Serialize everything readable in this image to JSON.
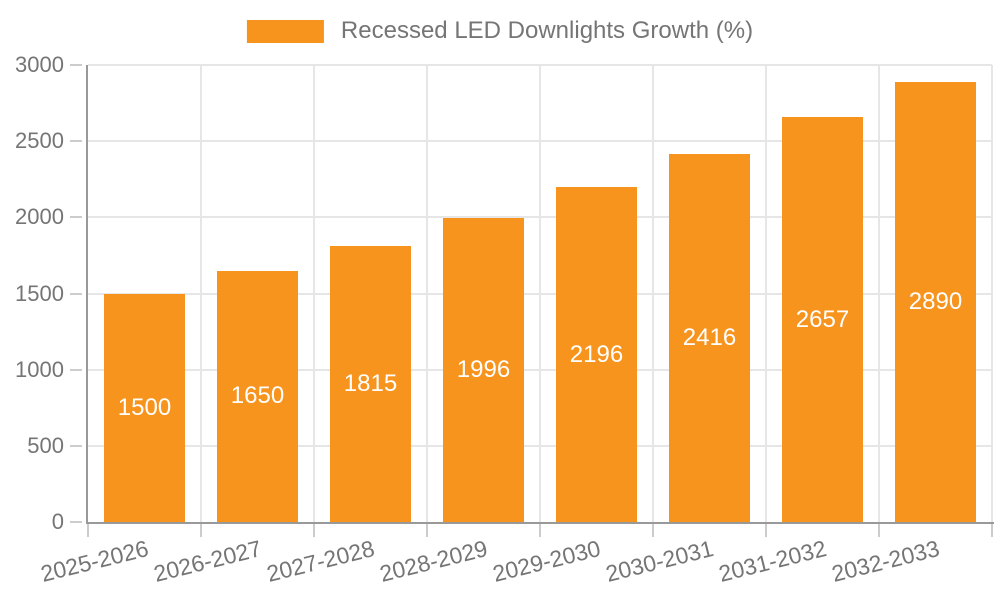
{
  "colors": {
    "bar": "#F7941E",
    "grid": "#E6E6E6",
    "axis": "#999999",
    "tick": "#CCCCCC",
    "text": "#757575",
    "bar_label": "#FFFFFF",
    "background": "#FFFFFF"
  },
  "legend": {
    "label": "Recessed LED Downlights Growth (%)"
  },
  "chart_data": {
    "type": "bar",
    "title": "",
    "xlabel": "",
    "ylabel": "",
    "categories": [
      "2025-2026",
      "2026-2027",
      "2027-2028",
      "2028-2029",
      "2029-2030",
      "2030-2031",
      "2031-2032",
      "2032-2033"
    ],
    "values": [
      1500,
      1650,
      1815,
      1996,
      2196,
      2416,
      2657,
      2890
    ],
    "legend": "Recessed LED Downlights Growth (%)",
    "ylim": [
      0,
      3000
    ],
    "yticks": [
      0,
      500,
      1000,
      1500,
      2000,
      2500,
      3000
    ],
    "grid": true,
    "legend_position": "top-center",
    "value_labels": "inside-center",
    "x_tick_rotation_deg": -14
  }
}
